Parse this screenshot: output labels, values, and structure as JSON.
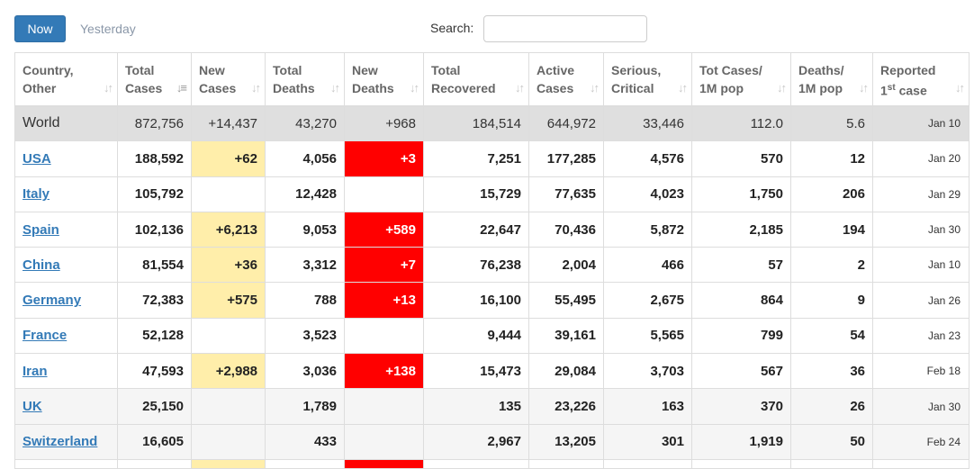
{
  "toolbar": {
    "now_label": "Now",
    "yesterday_label": "Yesterday",
    "search_label": "Search:",
    "search_value": ""
  },
  "columns": [
    {
      "line1": "Country,",
      "line2": "Other"
    },
    {
      "line1": "Total",
      "line2": "Cases"
    },
    {
      "line1": "New",
      "line2": "Cases"
    },
    {
      "line1": "Total",
      "line2": "Deaths"
    },
    {
      "line1": "New",
      "line2": "Deaths"
    },
    {
      "line1": "Total",
      "line2": "Recovered"
    },
    {
      "line1": "Active",
      "line2": "Cases"
    },
    {
      "line1": "Serious,",
      "line2": "Critical"
    },
    {
      "line1": "Tot Cases/",
      "line2": "1M pop"
    },
    {
      "line1": "Deaths/",
      "line2": "1M pop"
    },
    {
      "line1": "Reported",
      "line2a": "1",
      "line2sup": "st",
      "line2b": " case"
    }
  ],
  "rows": [
    {
      "country": "World",
      "total_cases": "872,756",
      "new_cases": "+14,437",
      "total_deaths": "43,270",
      "new_deaths": "+968",
      "total_recovered": "184,514",
      "active_cases": "644,972",
      "serious_critical": "33,446",
      "tot_cases_1m": "112.0",
      "deaths_1m": "5.6",
      "reported_first": "Jan 10"
    },
    {
      "country": "USA",
      "total_cases": "188,592",
      "new_cases": "+62",
      "total_deaths": "4,056",
      "new_deaths": "+3",
      "total_recovered": "7,251",
      "active_cases": "177,285",
      "serious_critical": "4,576",
      "tot_cases_1m": "570",
      "deaths_1m": "12",
      "reported_first": "Jan 20"
    },
    {
      "country": "Italy",
      "total_cases": "105,792",
      "new_cases": "",
      "total_deaths": "12,428",
      "new_deaths": "",
      "total_recovered": "15,729",
      "active_cases": "77,635",
      "serious_critical": "4,023",
      "tot_cases_1m": "1,750",
      "deaths_1m": "206",
      "reported_first": "Jan 29"
    },
    {
      "country": "Spain",
      "total_cases": "102,136",
      "new_cases": "+6,213",
      "total_deaths": "9,053",
      "new_deaths": "+589",
      "total_recovered": "22,647",
      "active_cases": "70,436",
      "serious_critical": "5,872",
      "tot_cases_1m": "2,185",
      "deaths_1m": "194",
      "reported_first": "Jan 30"
    },
    {
      "country": "China",
      "total_cases": "81,554",
      "new_cases": "+36",
      "total_deaths": "3,312",
      "new_deaths": "+7",
      "total_recovered": "76,238",
      "active_cases": "2,004",
      "serious_critical": "466",
      "tot_cases_1m": "57",
      "deaths_1m": "2",
      "reported_first": "Jan 10"
    },
    {
      "country": "Germany",
      "total_cases": "72,383",
      "new_cases": "+575",
      "total_deaths": "788",
      "new_deaths": "+13",
      "total_recovered": "16,100",
      "active_cases": "55,495",
      "serious_critical": "2,675",
      "tot_cases_1m": "864",
      "deaths_1m": "9",
      "reported_first": "Jan 26"
    },
    {
      "country": "France",
      "total_cases": "52,128",
      "new_cases": "",
      "total_deaths": "3,523",
      "new_deaths": "",
      "total_recovered": "9,444",
      "active_cases": "39,161",
      "serious_critical": "5,565",
      "tot_cases_1m": "799",
      "deaths_1m": "54",
      "reported_first": "Jan 23"
    },
    {
      "country": "Iran",
      "total_cases": "47,593",
      "new_cases": "+2,988",
      "total_deaths": "3,036",
      "new_deaths": "+138",
      "total_recovered": "15,473",
      "active_cases": "29,084",
      "serious_critical": "3,703",
      "tot_cases_1m": "567",
      "deaths_1m": "36",
      "reported_first": "Feb 18"
    },
    {
      "country": "UK",
      "total_cases": "25,150",
      "new_cases": "",
      "total_deaths": "1,789",
      "new_deaths": "",
      "total_recovered": "135",
      "active_cases": "23,226",
      "serious_critical": "163",
      "tot_cases_1m": "370",
      "deaths_1m": "26",
      "reported_first": "Jan 30"
    },
    {
      "country": "Switzerland",
      "total_cases": "16,605",
      "new_cases": "",
      "total_deaths": "433",
      "new_deaths": "",
      "total_recovered": "2,967",
      "active_cases": "13,205",
      "serious_critical": "301",
      "tot_cases_1m": "1,919",
      "deaths_1m": "50",
      "reported_first": "Feb 24"
    }
  ],
  "colors": {
    "new_cases_bg": "#ffeeaa",
    "new_deaths_bg": "#ff0000",
    "link": "#337ab7",
    "button": "#337ab7"
  }
}
